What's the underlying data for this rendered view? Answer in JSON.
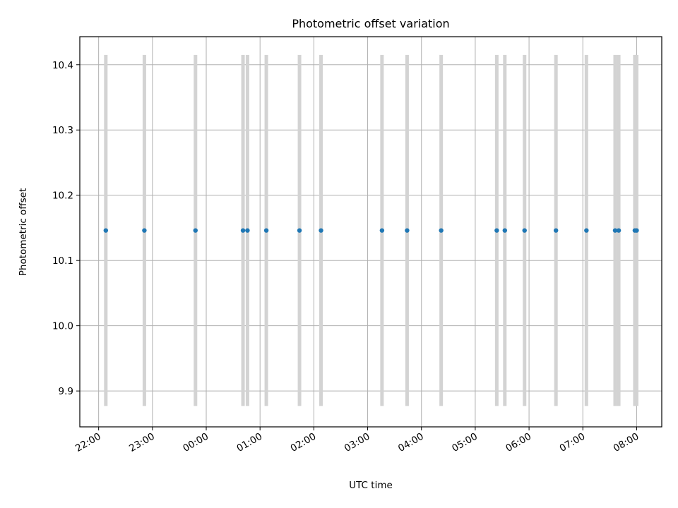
{
  "chart_data": {
    "type": "scatter",
    "title": "Photometric offset variation",
    "xlabel": "UTC time",
    "ylabel": "Photometric offset",
    "xlim": [
      "21:39",
      "08:28"
    ],
    "ylim": [
      9.845,
      10.443
    ],
    "x_ticks": [
      "22:00",
      "23:00",
      "00:00",
      "01:00",
      "02:00",
      "03:00",
      "04:00",
      "05:00",
      "06:00",
      "07:00",
      "08:00"
    ],
    "y_ticks": [
      "9.9",
      "10.0",
      "10.1",
      "10.2",
      "10.3",
      "10.4"
    ],
    "grid": true,
    "series": [
      {
        "marker_color": "#1f77b4",
        "errorbar_color": "#d3d3d3",
        "points": [
          {
            "x": "22:08",
            "y": 10.146,
            "err_low": 9.877,
            "err_high": 10.415
          },
          {
            "x": "22:51",
            "y": 10.146,
            "err_low": 9.877,
            "err_high": 10.415
          },
          {
            "x": "23:48",
            "y": 10.146,
            "err_low": 9.877,
            "err_high": 10.415
          },
          {
            "x": "00:41",
            "y": 10.146,
            "err_low": 9.877,
            "err_high": 10.415
          },
          {
            "x": "00:46",
            "y": 10.146,
            "err_low": 9.877,
            "err_high": 10.415
          },
          {
            "x": "01:07",
            "y": 10.146,
            "err_low": 9.877,
            "err_high": 10.415
          },
          {
            "x": "01:44",
            "y": 10.146,
            "err_low": 9.877,
            "err_high": 10.415
          },
          {
            "x": "02:08",
            "y": 10.146,
            "err_low": 9.877,
            "err_high": 10.415
          },
          {
            "x": "03:16",
            "y": 10.146,
            "err_low": 9.877,
            "err_high": 10.415
          },
          {
            "x": "03:44",
            "y": 10.146,
            "err_low": 9.877,
            "err_high": 10.415
          },
          {
            "x": "04:22",
            "y": 10.146,
            "err_low": 9.877,
            "err_high": 10.415
          },
          {
            "x": "05:24",
            "y": 10.146,
            "err_low": 9.877,
            "err_high": 10.415
          },
          {
            "x": "05:33",
            "y": 10.146,
            "err_low": 9.877,
            "err_high": 10.415
          },
          {
            "x": "05:55",
            "y": 10.146,
            "err_low": 9.877,
            "err_high": 10.415
          },
          {
            "x": "06:30",
            "y": 10.146,
            "err_low": 9.877,
            "err_high": 10.415
          },
          {
            "x": "07:04",
            "y": 10.146,
            "err_low": 9.877,
            "err_high": 10.415
          },
          {
            "x": "07:36",
            "y": 10.146,
            "err_low": 9.877,
            "err_high": 10.415
          },
          {
            "x": "07:40",
            "y": 10.146,
            "err_low": 9.877,
            "err_high": 10.415
          },
          {
            "x": "07:58",
            "y": 10.146,
            "err_low": 9.877,
            "err_high": 10.415
          },
          {
            "x": "08:00",
            "y": 10.146,
            "err_low": 9.877,
            "err_high": 10.415
          }
        ]
      }
    ]
  }
}
